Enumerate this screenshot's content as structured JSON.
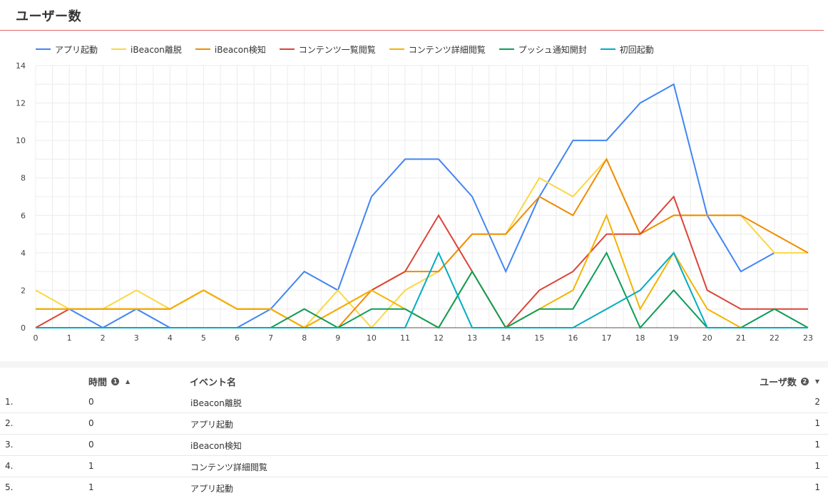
{
  "header": {
    "title": "ユーザー数"
  },
  "chart_data": {
    "type": "line",
    "x": [
      0,
      1,
      2,
      3,
      4,
      5,
      6,
      7,
      8,
      9,
      10,
      11,
      12,
      13,
      14,
      15,
      16,
      17,
      18,
      19,
      20,
      21,
      22,
      23
    ],
    "xlim": [
      0,
      23
    ],
    "ylim": [
      0,
      14
    ],
    "yticks": [
      0,
      2,
      4,
      6,
      8,
      10,
      12,
      14
    ],
    "grid": true,
    "legend_position": "top-left",
    "series": [
      {
        "name": "アプリ起動",
        "color": "#4285f4",
        "values": [
          1,
          1,
          0,
          1,
          0,
          0,
          0,
          1,
          3,
          2,
          7,
          9,
          9,
          7,
          3,
          7,
          10,
          10,
          12,
          13,
          6,
          3,
          4,
          null
        ]
      },
      {
        "name": "iBeacon離脱",
        "color": "#fbd743",
        "values": [
          2,
          1,
          1,
          2,
          1,
          2,
          1,
          1,
          0,
          2,
          0,
          2,
          3,
          5,
          5,
          8,
          7,
          9,
          5,
          6,
          6,
          6,
          4,
          4
        ]
      },
      {
        "name": "iBeacon検知",
        "color": "#f08c00",
        "values": [
          1,
          1,
          1,
          1,
          1,
          2,
          1,
          1,
          0,
          0,
          2,
          3,
          3,
          5,
          5,
          7,
          6,
          9,
          5,
          6,
          6,
          6,
          5,
          4
        ]
      },
      {
        "name": "コンテンツ一覧閲覧",
        "color": "#db4437",
        "values": [
          0,
          1,
          1,
          1,
          1,
          2,
          1,
          1,
          0,
          1,
          2,
          3,
          6,
          3,
          0,
          2,
          3,
          5,
          5,
          7,
          2,
          1,
          1,
          1
        ]
      },
      {
        "name": "コンテンツ詳細閲覧",
        "color": "#f4b400",
        "values": [
          1,
          1,
          1,
          1,
          1,
          2,
          1,
          1,
          0,
          1,
          2,
          1,
          0,
          3,
          0,
          1,
          2,
          6,
          1,
          4,
          1,
          0,
          0,
          0
        ]
      },
      {
        "name": "プッシュ通知開封",
        "color": "#0f9d58",
        "values": [
          0,
          0,
          0,
          0,
          0,
          0,
          0,
          0,
          1,
          0,
          1,
          1,
          0,
          3,
          0,
          1,
          1,
          4,
          0,
          2,
          0,
          0,
          1,
          0
        ]
      },
      {
        "name": "初回起動",
        "color": "#00acc1",
        "values": [
          0,
          0,
          0,
          0,
          0,
          0,
          0,
          0,
          0,
          0,
          0,
          0,
          4,
          0,
          0,
          0,
          0,
          1,
          2,
          4,
          0,
          0,
          0,
          0
        ]
      }
    ]
  },
  "table": {
    "headers": {
      "time": "時間",
      "event": "イベント名",
      "users": "ユーザ数"
    },
    "time_info_icon": "1",
    "users_info_icon": "2",
    "time_sort_icon": "▲",
    "users_sort_icon": "▼",
    "rows": [
      {
        "idx": "1.",
        "time": "0",
        "event": "iBeacon離脱",
        "users": "2"
      },
      {
        "idx": "2.",
        "time": "0",
        "event": "アプリ起動",
        "users": "1"
      },
      {
        "idx": "3.",
        "time": "0",
        "event": "iBeacon検知",
        "users": "1"
      },
      {
        "idx": "4.",
        "time": "1",
        "event": "コンテンツ詳細閲覧",
        "users": "1"
      },
      {
        "idx": "5.",
        "time": "1",
        "event": "アプリ起動",
        "users": "1"
      }
    ]
  }
}
